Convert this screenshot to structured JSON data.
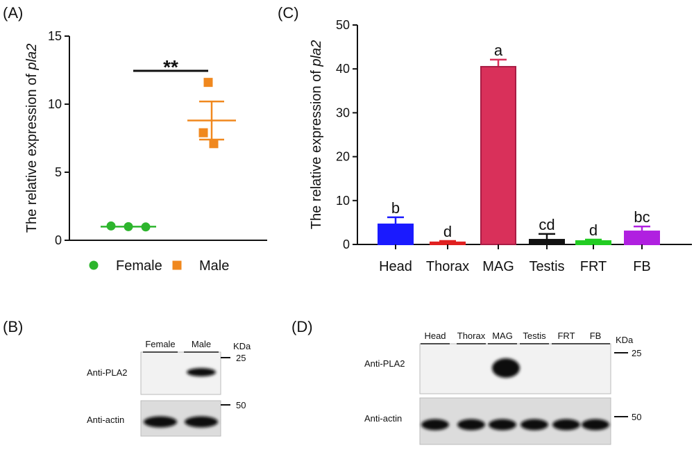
{
  "chart_data": [
    {
      "type": "scatter",
      "panel": "(A)",
      "ylabel": [
        "The relative expression of ",
        "pla2"
      ],
      "annotation": "**",
      "ylim": [
        0,
        15
      ],
      "yticks": [
        0,
        5,
        10,
        15
      ],
      "series": [
        {
          "name": "Female",
          "color": "#2db52d",
          "marker": "circle",
          "values": [
            1.05,
            1.0,
            0.98
          ],
          "mean": 1.0,
          "sem": 0.03
        },
        {
          "name": "Male",
          "color": "#f0881e",
          "marker": "square",
          "values": [
            11.6,
            7.9,
            7.1
          ],
          "mean": 8.8,
          "sem": 1.4
        }
      ]
    },
    {
      "type": "bar",
      "panel": "(C)",
      "ylabel": [
        "The relative expression of ",
        "pla2"
      ],
      "ylim": [
        0,
        50
      ],
      "yticks": [
        0,
        10,
        20,
        30,
        40,
        50
      ],
      "categories": [
        "Head",
        "Thorax",
        "MAG",
        "Testis",
        "FRT",
        "FB"
      ],
      "values": [
        4.6,
        0.5,
        40.5,
        1.1,
        0.8,
        3.0
      ],
      "errors": [
        1.6,
        0.3,
        1.6,
        1.3,
        0.3,
        1.1
      ],
      "letters": [
        "b",
        "d",
        "a",
        "cd",
        "d",
        "bc"
      ],
      "colors": [
        "#1a1aff",
        "#e02020",
        "#d9305a",
        "#111111",
        "#22cc22",
        "#b020e0"
      ]
    }
  ],
  "blots": [
    {
      "panel": "(B)",
      "lanes": [
        "Female",
        "Male"
      ],
      "rows": [
        "Anti-PLA2",
        "Anti-actin"
      ],
      "unit": "KDa",
      "markers": [
        25,
        50
      ]
    },
    {
      "panel": "(D)",
      "lanes": [
        "Head",
        "Thorax",
        "MAG",
        "Testis",
        "FRT",
        "FB"
      ],
      "rows": [
        "Anti-PLA2",
        "Anti-actin"
      ],
      "unit": "KDa",
      "markers": [
        25,
        50
      ]
    }
  ]
}
